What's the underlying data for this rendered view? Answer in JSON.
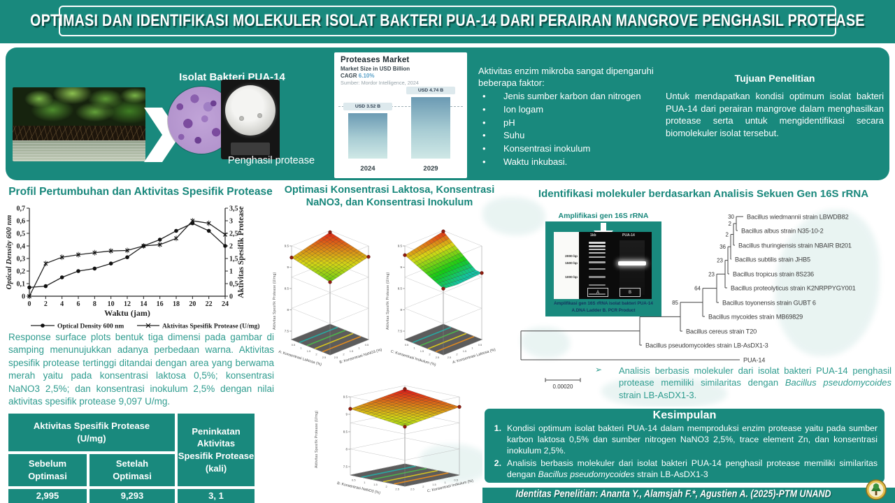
{
  "poster": {
    "title": "OPTIMASI DAN IDENTIFIKASI MOLEKULER ISOLAT BAKTERI PUA-14 DARI PERAIRAN MANGROVE PENGHASIL PROTEASE",
    "footer": "Identitas Penelitian: Ananta  Y., Alamsjah F.*, Agustien A. (2025)-PTM UNAND"
  },
  "intro": {
    "isolate_label": "Isolat Bakteri PUA-14",
    "producer_label": "Penghasil protease",
    "market": {
      "title": "Proteases Market",
      "subtitle": "Market Size in USD Billion",
      "cagr_label": "CAGR",
      "cagr_value": "6.10%",
      "source": "Sumber:  Mordor  Intelligence,   2024"
    },
    "factors": {
      "intro": "Aktivitas enzim mikroba sangat dipengaruhi beberapa faktor:",
      "bullet": "•",
      "items": [
        "Jenis sumber karbon dan nitrogen",
        "Ion logam",
        "pH",
        "Suhu",
        "Konsentrasi inokulum",
        "Waktu inkubasi."
      ]
    },
    "objective": {
      "heading": "Tujuan Penelitian",
      "body": "Untuk mendapatkan kondisi optimum isolat bakteri PUA-14 dari perairan mangrove dalam menghasilkan protease serta untuk mengidentifikasi secara biomolekuler isolat tersebut."
    }
  },
  "growth": {
    "title": "Profil Pertumbuhan dan Aktivitas Spesifik Protease",
    "y_left_label": "Optical Density  600 nm",
    "y_right_label": "Aktivitas Spesifik Protease",
    "x_label": "Waktu (jam)",
    "legend": [
      "Optical Density 600 nm",
      "Aktivitas Spesifik Protease (U/mg)"
    ]
  },
  "optimization": {
    "title": "Optimasi Konsentrasi Laktosa, Konsentrasi NaNO3, dan Konsentrasi Inokulum",
    "z_label": "Aktivitas Spesifik Protease (U/mg)",
    "plots": [
      {
        "left_label": "A: Konsentrasi Laktosa (%)",
        "right_label": "B: Konsentrasi NaNO3 (%)"
      },
      {
        "left_label": "C: Konsentrasi Inokulum (%)",
        "right_label": "A: Konsentrasi Laktosa (%)"
      },
      {
        "left_label": "B: Konsentrasi NaNO3 (%)",
        "right_label": "C: Konsentrasi Inokulum (%)"
      }
    ]
  },
  "rsm_text": "Response surface plots bentuk tiga dimensi pada gambar di samping menunujukkan adanya perbedaan warna. Aktivitas spesifik protease tertinggi ditandai dengan area yang berwama merah yaitu pada konsentrasi laktosa 0,5%; konsentrasi NaNO3 2,5%; dan konsentrasi inokulum 2,5% dengan nilai aktivitas spesifik protease 9,097 U/mg.",
  "results_table": {
    "header_left_1": "Aktivitas Spesifik Protease",
    "header_left_2": "(U/mg)",
    "header_right_1": "Peninkatan Aktivitas",
    "header_right_2": "Spesifik Protease",
    "header_right_3": "(kali)",
    "sub_1a": "Sebelum",
    "sub_1b": "Optimasi",
    "sub_2a": "Setelah",
    "sub_2b": "Optimasi",
    "val_before": "2,995",
    "val_after": "9,293",
    "val_fold": "3, 1"
  },
  "identification": {
    "title": "Identifikasi molekuler berdasarkan Analisis Sekuen Gen 16S rRNA",
    "gel": {
      "header": "Amplifikasi gen 16S rRNA",
      "lane1": "1kb",
      "lane2": "PUA-14",
      "markers": [
        "2000 bp",
        "1500 bp",
        "1000 bp"
      ],
      "box_a": "A",
      "box_b": "B",
      "caption1": "Amplifikasi gen 16S rRNA isolat bakteri PUA-14",
      "caption2": "A.DNA Ladder B. PCR Product"
    },
    "tree": {
      "taxa": [
        "Bacillus wiedmannii strain LBWDB82",
        "Bacillus albus strain N35-10-2",
        "Bacillus thuringiensis strain NBAIR Bt201",
        "Bacillus subtilis strain JHB5",
        "Bacillus tropicus strain 8S236",
        "Bacillus proteolyticus strain K2NRPPYGY001",
        "Bacillus toyonensis strain GUBT 6",
        "Bacillus mycoides strain MB69829",
        "Bacillus cereus strain T20",
        "Bacillus pseudomycoides strain LB-AsDX1-3",
        "PUA-14"
      ],
      "bootstraps": [
        "30",
        "2",
        "2",
        "36",
        "23",
        "23",
        "64",
        "85"
      ],
      "scale": "0.00020"
    },
    "note": {
      "bullet": "➢",
      "pre": "Analisis berbasis molekuler dari isolat bakteri PUA-14 penghasil protease memiliki similaritas dengan ",
      "italic": "Bacillus pseudomycoides",
      "post": " strain LB-AsDX1-3."
    }
  },
  "conclusion": {
    "heading": "Kesimpulan",
    "items": [
      {
        "num": "1.",
        "pre": "Kondisi optimum isolat bakteri PUA-14 dalam memproduksi enzim protease yaitu pada sumber karbon laktosa 0,5% dan sumber nitrogen NaNO3 2,5%, trace element Zn, dan konsentrasi inokulum 2,5%.",
        "italic": "",
        "post": ""
      },
      {
        "num": "2.",
        "pre": "Analisis berbasis molekuler dari isolat bakteri PUA-14 penghasil protease memiliki similaritas dengan ",
        "italic": "Bacillus pseudomycoides",
        "post": " strain LB-AsDX1-3"
      }
    ]
  },
  "chart_data": [
    {
      "type": "bar",
      "title": "Proteases Market",
      "subtitle": "Market Size in USD Billion",
      "cagr": "6.10%",
      "source": "Mordor Intelligence, 2024",
      "categories": [
        "2024",
        "2029"
      ],
      "values": [
        3.52,
        4.74
      ],
      "bar_labels": [
        "USD 3.52 B",
        "USD 4.74 B"
      ],
      "ylabel": "Market Size (USD Billion)"
    },
    {
      "type": "line",
      "title": "Profil Pertumbuhan dan Aktivitas Spesifik Protease",
      "x": [
        0,
        2,
        4,
        6,
        8,
        10,
        12,
        14,
        16,
        18,
        20,
        22,
        24
      ],
      "xlabel": "Waktu (jam)",
      "y1label": "Optical Density 600 nm",
      "y2label": "Aktivitas Spesifik Protease (U/mg)",
      "y1lim": [
        0,
        0.7
      ],
      "y2lim": [
        0,
        3.5
      ],
      "series": [
        {
          "name": "Optical Density 600 nm",
          "axis": "left",
          "values": [
            0.07,
            0.08,
            0.15,
            0.2,
            0.22,
            0.26,
            0.31,
            0.4,
            0.45,
            0.52,
            0.58,
            0.52,
            0.4
          ]
        },
        {
          "name": "Aktivitas Spesifik Protease (U/mg)",
          "axis": "right",
          "values": [
            0.0,
            1.3,
            1.55,
            1.65,
            1.73,
            1.8,
            1.82,
            2.0,
            2.05,
            2.3,
            3.0,
            2.9,
            2.45
          ]
        }
      ]
    },
    {
      "type": "surface",
      "title": "Optimasi Konsentrasi Laktosa, Konsentrasi NaNO3, dan Konsentrasi Inokulum",
      "plots": [
        {
          "x": "B: Konsentrasi NaNO3 (%)",
          "y": "A: Konsentrasi Laktosa (%)",
          "z": "Aktivitas Spesifik Protease (U/mg)"
        },
        {
          "x": "A: Konsentrasi Laktosa (%)",
          "y": "C: Konsentrasi Inokulum (%)",
          "z": "Aktivitas Spesifik Protease (U/mg)"
        },
        {
          "x": "C: Konsentrasi Inokulum (%)",
          "y": "B: Konsentrasi NaNO3 (%)",
          "z": "Aktivitas Spesifik Protease (U/mg)"
        }
      ],
      "axis_ticks": [
        "0.5",
        "1",
        "1.5",
        "2",
        "2.5"
      ],
      "z_ticks": [
        "7.5",
        "8",
        "8.5",
        "9",
        "9.5"
      ],
      "optimum": {
        "laktosa_pct": "0,5",
        "nano3_pct": "2,5",
        "inokulum_pct": "2,5",
        "aktivitas_u_mg": "9,097"
      }
    }
  ],
  "colors": {
    "teal": "#19897D",
    "teal_text": "#2F9C8F",
    "bar_top": "#6B9AB3",
    "bar_bottom": "#CFE8E6",
    "caption_navy": "#14325E"
  }
}
